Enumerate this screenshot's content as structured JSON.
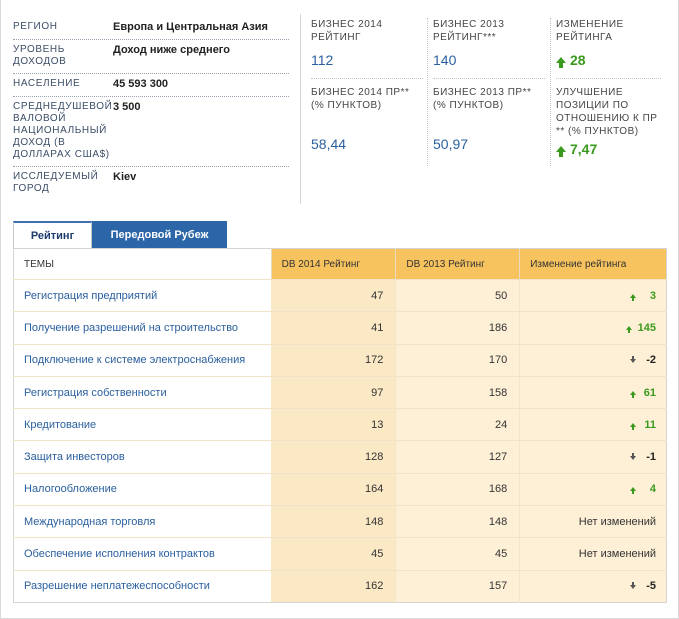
{
  "profile": [
    {
      "label": "РЕГИОН",
      "value": "Европа и Центральная Азия"
    },
    {
      "label": "УРОВЕНЬ ДОХОДОВ",
      "value": "Доход ниже среднего"
    },
    {
      "label": "НАСЕЛЕНИЕ",
      "value": "45 593 300"
    },
    {
      "label": "СРЕДНЕДУШЕВОЙ ВАЛОВОЙ НАЦИОНАЛЬНЫЙ ДОХОД (В ДОЛЛАРАХ США$)",
      "value": "3 500"
    },
    {
      "label": "ИССЛЕДУЕМЫЙ ГОРОД",
      "value": "Kiev"
    }
  ],
  "stats": {
    "rank2014": {
      "label": "БИЗНЕС 2014 РЕЙТИНГ",
      "value": "112"
    },
    "rank2013": {
      "label": "БИЗНЕС 2013 РЕЙТИНГ***",
      "value": "140"
    },
    "rank_change": {
      "label": "ИЗМЕНЕНИЕ РЕЙТИНГА",
      "value": "28"
    },
    "dtf2014": {
      "label": "БИЗНЕС 2014 ПР** (% ПУНКТОВ)",
      "value": "58,44"
    },
    "dtf2013": {
      "label": "БИЗНЕС 2013 ПР** (% ПУНКТОВ)",
      "value": "50,97"
    },
    "dtf_change": {
      "label": "УЛУЧШЕНИЕ ПОЗИЦИИ ПО ОТНОШЕНИЮ К ПР ** (% ПУНКТОВ)",
      "value": "7,47"
    }
  },
  "tabs": {
    "active": "Рейтинг",
    "inactive": "Передовой Рубеж"
  },
  "table": {
    "headers": {
      "topic": "ТЕМЫ",
      "r14": "DB 2014 Рейтинг",
      "r13": "DB 2013 Рейтинг",
      "chg": "Изменение рейтинга"
    },
    "rows": [
      {
        "topic": "Регистрация предприятий",
        "r14": "47",
        "r13": "50",
        "chg": "3",
        "dir": "up"
      },
      {
        "topic": "Получение разрешений на строительство",
        "r14": "41",
        "r13": "186",
        "chg": "145",
        "dir": "up"
      },
      {
        "topic": "Подключение к системе электроснабжения",
        "r14": "172",
        "r13": "170",
        "chg": "-2",
        "dir": "down"
      },
      {
        "topic": "Регистрация собственности",
        "r14": "97",
        "r13": "158",
        "chg": "61",
        "dir": "up"
      },
      {
        "topic": "Кредитование",
        "r14": "13",
        "r13": "24",
        "chg": "11",
        "dir": "up"
      },
      {
        "topic": "Защита инвесторов",
        "r14": "128",
        "r13": "127",
        "chg": "-1",
        "dir": "down"
      },
      {
        "topic": "Налогообложение",
        "r14": "164",
        "r13": "168",
        "chg": "4",
        "dir": "up"
      },
      {
        "topic": "Международная торговля",
        "r14": "148",
        "r13": "148",
        "chg": "Нет изменений",
        "dir": "none"
      },
      {
        "topic": "Обеспечение исполнения контрактов",
        "r14": "45",
        "r13": "45",
        "chg": "Нет изменений",
        "dir": "none"
      },
      {
        "topic": "Разрешение неплатежеспособности",
        "r14": "162",
        "r13": "157",
        "chg": "-5",
        "dir": "down"
      }
    ]
  },
  "colors": {
    "accent_orange": "#f7c35f",
    "link_blue": "#2a5f9e",
    "up_green": "#3a9a1e",
    "tab_blue": "#2c65a8"
  }
}
